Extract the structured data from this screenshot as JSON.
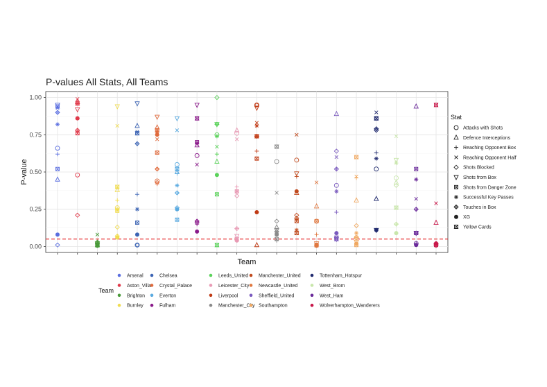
{
  "chart_data": {
    "type": "scatter",
    "title": "P-values All Stats, All Teams",
    "xlabel": "Team",
    "ylabel": "P-value",
    "ylim": [
      -0.04,
      1.04
    ],
    "yticks": [
      "0.00",
      "0.25",
      "0.50",
      "0.75",
      "1.00"
    ],
    "reference_line": {
      "y": 0.05,
      "style": "dashed",
      "color": "#e41a1c"
    },
    "grid": true,
    "legend_placement": "right (stat shapes), bottom (team colours)",
    "team_legend_title": "Team",
    "stat_legend_title": "Stat",
    "teams": [
      {
        "name": "Arsenal",
        "color": "#5a6ee0"
      },
      {
        "name": "Aston_Villa",
        "color": "#e0394a"
      },
      {
        "name": "Brighton",
        "color": "#4a9a3a"
      },
      {
        "name": "Burnley",
        "color": "#f0dc50"
      },
      {
        "name": "Chelsea",
        "color": "#3c64b4"
      },
      {
        "name": "Crystal_Palace",
        "color": "#e06a3c"
      },
      {
        "name": "Everton",
        "color": "#5aaae0"
      },
      {
        "name": "Fulham",
        "color": "#8a1a8a"
      },
      {
        "name": "Leeds_United",
        "color": "#5ad25a"
      },
      {
        "name": "Leicester_City",
        "color": "#e89ab4"
      },
      {
        "name": "Liverpool",
        "color": "#c03a14"
      },
      {
        "name": "Manchester_City",
        "color": "#8a8a8a"
      },
      {
        "name": "Manchester_United",
        "color": "#c04a1e"
      },
      {
        "name": "Newcastle_United",
        "color": "#e07840"
      },
      {
        "name": "Sheffield_United",
        "color": "#7a5abe"
      },
      {
        "name": "Southampton",
        "color": "#f0a860"
      },
      {
        "name": "Tottenham_Hotspur",
        "color": "#202a6e"
      },
      {
        "name": "West_Brom",
        "color": "#c8e6aa"
      },
      {
        "name": "West_Ham",
        "color": "#6a2a9a"
      },
      {
        "name": "Wolverhampton_Wanderers",
        "color": "#c8184a"
      }
    ],
    "stats": [
      {
        "name": "Attacks with Shots",
        "shape": "circle-open"
      },
      {
        "name": "Defence Interceptions",
        "shape": "triangle-open"
      },
      {
        "name": "Reaching Opponent Box",
        "shape": "plus"
      },
      {
        "name": "Reaching Opponent Half",
        "shape": "cross"
      },
      {
        "name": "Shots Blocked",
        "shape": "diamond-open"
      },
      {
        "name": "Shots from Box",
        "shape": "triangle-down-open"
      },
      {
        "name": "Shots from Danger Zone",
        "shape": "square-cross"
      },
      {
        "name": "Successful Key Passes",
        "shape": "asterisk"
      },
      {
        "name": "Touches in Box",
        "shape": "diamond-plus"
      },
      {
        "name": "XG",
        "shape": "circle-filled"
      },
      {
        "name": "Yellow Cards",
        "shape": "square-hourglass"
      }
    ],
    "values": [
      [
        0.66,
        0.45,
        0.62,
        0.93,
        0.01,
        0.95,
        0.52,
        0.82,
        0.9,
        0.08,
        0.94
      ],
      [
        0.48,
        0.97,
        0.96,
        0.99,
        0.21,
        0.92,
        0.76,
        0.86,
        0.78,
        0.86,
        0.96
      ],
      [
        0.02,
        0.01,
        0.02,
        0.08,
        0.01,
        0.02,
        0.01,
        0.02,
        0.03,
        0.005,
        0.01
      ],
      [
        0.26,
        0.38,
        0.31,
        0.81,
        0.13,
        0.94,
        0.24,
        0.25,
        0.07,
        0.06,
        0.4
      ],
      [
        0.01,
        0.81,
        0.35,
        0.77,
        0.01,
        0.96,
        0.16,
        0.25,
        0.69,
        0.08,
        0.76
      ],
      [
        0.44,
        0.8,
        0.42,
        0.72,
        0.43,
        0.87,
        0.63,
        0.77,
        0.52,
        0.75,
        0.78
      ],
      [
        0.55,
        0.5,
        0.49,
        0.78,
        0.26,
        0.86,
        0.18,
        0.41,
        0.36,
        0.25,
        0.52
      ],
      [
        0.61,
        0.68,
        0.15,
        0.55,
        0.16,
        0.95,
        0.7,
        0.69,
        0.17,
        0.1,
        0.86
      ],
      [
        0.75,
        0.57,
        0.62,
        0.67,
        1.0,
        0.82,
        0.35,
        0.74,
        0.82,
        0.48,
        0.01
      ],
      [
        0.76,
        0.78,
        0.4,
        0.72,
        0.34,
        0.07,
        0.37,
        0.37,
        0.12,
        0.04,
        0.05
      ],
      [
        0.95,
        0.01,
        0.64,
        0.83,
        0.95,
        0.93,
        0.59,
        0.81,
        0.74,
        0.23,
        0.74
      ],
      [
        0.57,
        0.13,
        0.04,
        0.36,
        0.17,
        0.11,
        0.05,
        0.09,
        0.1,
        0.08,
        0.67
      ],
      [
        0.58,
        0.36,
        0.47,
        0.75,
        0.21,
        0.49,
        0.17,
        0.11,
        0.19,
        0.37,
        0.09
      ],
      [
        0.17,
        0.27,
        0.08,
        0.43,
        0.01,
        0.02,
        0.17,
        0.01,
        0.01,
        0.005,
        0.01
      ],
      [
        0.41,
        0.89,
        0.23,
        0.6,
        0.64,
        0.05,
        0.06,
        0.37,
        0.52,
        0.09,
        0.05
      ],
      [
        0.06,
        0.31,
        0.46,
        0.47,
        0.14,
        0.03,
        0.01,
        0.09,
        0.06,
        0.02,
        0.6
      ],
      [
        0.52,
        0.32,
        0.63,
        0.9,
        0.78,
        0.11,
        0.86,
        0.59,
        0.79,
        0.11,
        0.86
      ],
      [
        0.46,
        0.43,
        0.15,
        0.74,
        0.41,
        0.58,
        0.26,
        0.56,
        0.15,
        0.09,
        0.26
      ],
      [
        0.02,
        0.94,
        0.02,
        0.32,
        0.09,
        0.09,
        0.52,
        0.45,
        0.25,
        0.01,
        0.09
      ],
      [
        0.01,
        0.16,
        0.02,
        0.29,
        0.02,
        0.01,
        0.01,
        0.02,
        0.02,
        0.02,
        0.95
      ]
    ]
  }
}
